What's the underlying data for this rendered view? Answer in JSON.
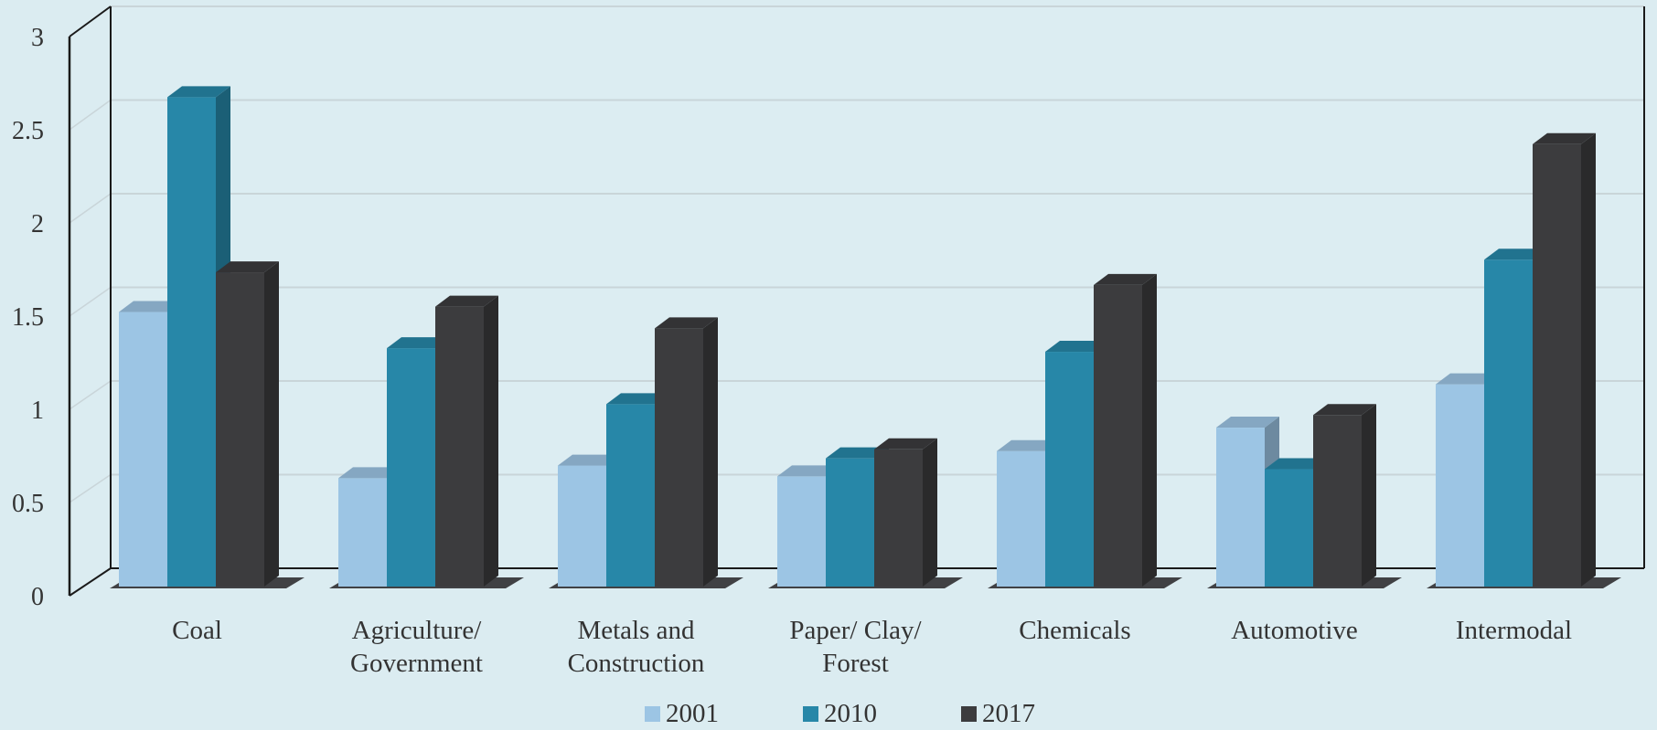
{
  "chart_data": {
    "type": "bar",
    "title": "",
    "xlabel": "",
    "ylabel": "",
    "categories": [
      [
        "Coal"
      ],
      [
        "Agriculture/",
        "Government"
      ],
      [
        "Metals and",
        "Construction"
      ],
      [
        "Paper/ Clay/",
        "Forest"
      ],
      [
        "Chemicals"
      ],
      [
        "Automotive"
      ],
      [
        "Intermodal"
      ]
    ],
    "series": [
      {
        "name": "2001",
        "color": "#9cc5e4",
        "values": [
          1.52,
          0.6,
          0.67,
          0.61,
          0.75,
          0.88,
          1.12
        ]
      },
      {
        "name": "2010",
        "color": "#2787a8",
        "values": [
          2.71,
          1.32,
          1.01,
          0.71,
          1.3,
          0.65,
          1.81
        ]
      },
      {
        "name": "2017",
        "color": "#3c3c3e",
        "values": [
          1.74,
          1.55,
          1.43,
          0.76,
          1.67,
          0.95,
          2.45
        ]
      }
    ],
    "ylim": [
      0,
      3
    ],
    "yticks": [
      "0",
      "0.5",
      "1",
      "1.5",
      "2",
      "2.5",
      "3"
    ],
    "grid": true,
    "legend_position": "bottom"
  }
}
